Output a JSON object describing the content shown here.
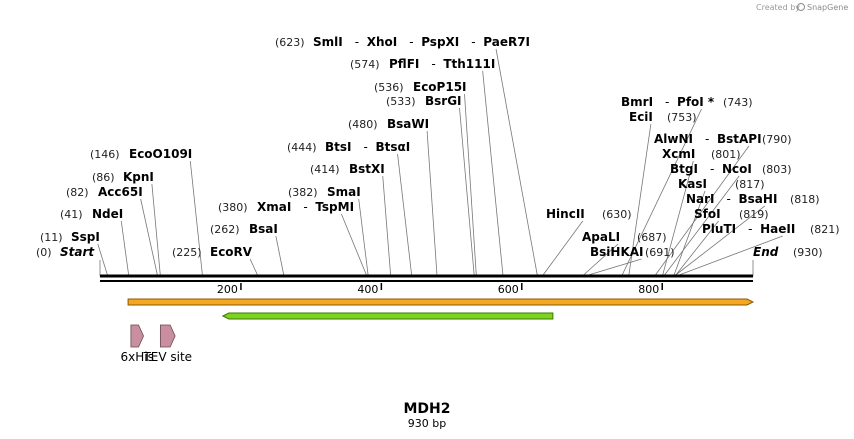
{
  "credit": {
    "prefix": "Created by",
    "brand": "SnapGene"
  },
  "sequence": {
    "name": "MDH2",
    "length_label": "930 bp",
    "length": 930
  },
  "ticks": [
    {
      "value": 200,
      "label": "200"
    },
    {
      "value": 400,
      "label": "400"
    },
    {
      "value": 600,
      "label": "600"
    },
    {
      "value": 800,
      "label": "800"
    }
  ],
  "enzyme_rows": [
    {
      "pos": "(0)",
      "sites": [
        {
          "name": "Start",
          "at": 0,
          "italic": true
        }
      ]
    },
    {
      "pos": "(11)",
      "sites": [
        {
          "name": "SspI",
          "at": 11
        }
      ]
    },
    {
      "pos": "(41)",
      "sites": [
        {
          "name": "NdeI",
          "at": 41
        }
      ]
    },
    {
      "pos": "(82)",
      "sites": [
        {
          "name": "Acc65I",
          "at": 82
        }
      ]
    },
    {
      "pos": "(86)",
      "sites": [
        {
          "name": "KpnI",
          "at": 86
        }
      ]
    },
    {
      "pos": "(146)",
      "sites": [
        {
          "name": "EcoO109I",
          "at": 146
        }
      ]
    },
    {
      "pos": "(225)",
      "sites": [
        {
          "name": "EcoRV",
          "at": 225
        }
      ]
    },
    {
      "pos": "(262)",
      "sites": [
        {
          "name": "BsaI",
          "at": 262
        }
      ]
    },
    {
      "pos": "(380)",
      "sites": [
        {
          "name": "XmaI",
          "at": 380
        },
        {
          "name": "TspMI",
          "at": 380
        }
      ]
    },
    {
      "pos": "(382)",
      "sites": [
        {
          "name": "SmaI",
          "at": 382
        }
      ]
    },
    {
      "pos": "(414)",
      "sites": [
        {
          "name": "BstXI",
          "at": 414
        }
      ]
    },
    {
      "pos": "(444)",
      "sites": [
        {
          "name": "BtsI",
          "at": 444
        },
        {
          "name": "BtsαI",
          "at": 444
        }
      ]
    },
    {
      "pos": "(480)",
      "sites": [
        {
          "name": "BsaWI",
          "at": 480
        }
      ]
    },
    {
      "pos": "(533)",
      "sites": [
        {
          "name": "BsrGI",
          "at": 533
        }
      ]
    },
    {
      "pos": "(536)",
      "sites": [
        {
          "name": "EcoP15I",
          "at": 536
        }
      ]
    },
    {
      "pos": "(574)",
      "sites": [
        {
          "name": "PflFI",
          "at": 574
        },
        {
          "name": "Tth111I",
          "at": 574
        }
      ]
    },
    {
      "pos": "(623)",
      "sites": [
        {
          "name": "SmlI",
          "at": 623
        },
        {
          "name": "XhoI",
          "at": 623
        },
        {
          "name": "PspXI",
          "at": 623
        },
        {
          "name": "PaeR7I",
          "at": 623
        }
      ]
    },
    {
      "pos": "(630)",
      "sites": [
        {
          "name": "HincII",
          "at": 630
        }
      ]
    },
    {
      "pos": "(687)",
      "sites": [
        {
          "name": "ApaLI",
          "at": 687
        }
      ]
    },
    {
      "pos": "(691)",
      "sites": [
        {
          "name": "BsiHKAI",
          "at": 691
        }
      ]
    },
    {
      "pos": "(743)",
      "sites": [
        {
          "name": "BmrI",
          "at": 743
        },
        {
          "name": "PfoI *",
          "at": 743
        }
      ]
    },
    {
      "pos": "(753)",
      "sites": [
        {
          "name": "EciI",
          "at": 753
        }
      ]
    },
    {
      "pos": "(790)",
      "sites": [
        {
          "name": "AlwNI",
          "at": 790
        },
        {
          "name": "BstAPI",
          "at": 790
        }
      ]
    },
    {
      "pos": "(801)",
      "sites": [
        {
          "name": "XcmI",
          "at": 801
        }
      ]
    },
    {
      "pos": "(803)",
      "sites": [
        {
          "name": "BtgI",
          "at": 803
        },
        {
          "name": "NcoI",
          "at": 803
        }
      ]
    },
    {
      "pos": "(817)",
      "sites": [
        {
          "name": "KasI",
          "at": 817
        }
      ]
    },
    {
      "pos": "(818)",
      "sites": [
        {
          "name": "NarI",
          "at": 818
        },
        {
          "name": "BsaHI",
          "at": 818
        }
      ]
    },
    {
      "pos": "(819)",
      "sites": [
        {
          "name": "SfoI",
          "at": 819
        }
      ]
    },
    {
      "pos": "(821)",
      "sites": [
        {
          "name": "PluTI",
          "at": 821
        },
        {
          "name": "HaeII",
          "at": 821
        }
      ]
    },
    {
      "pos": "(930)",
      "sites": [
        {
          "name": "End",
          "at": 930,
          "italic": true
        }
      ]
    }
  ],
  "features": [
    {
      "name": "orange-feature-bar",
      "start": 40,
      "end": 930,
      "direction": "forward",
      "color": "#f5a623",
      "border": "#8a5a00"
    },
    {
      "name": "green-feature-arrow",
      "start": 175,
      "end": 645,
      "direction": "reverse",
      "color": "#7ed321",
      "border": "#3a7a00"
    },
    {
      "name": "6xHis",
      "label": "6xHis",
      "start": 44,
      "end": 62,
      "direction": "forward",
      "color": "#c98fa0"
    },
    {
      "name": "TEV site",
      "label": "TEV site",
      "start": 86,
      "end": 107,
      "direction": "forward",
      "color": "#c98fa0"
    }
  ]
}
